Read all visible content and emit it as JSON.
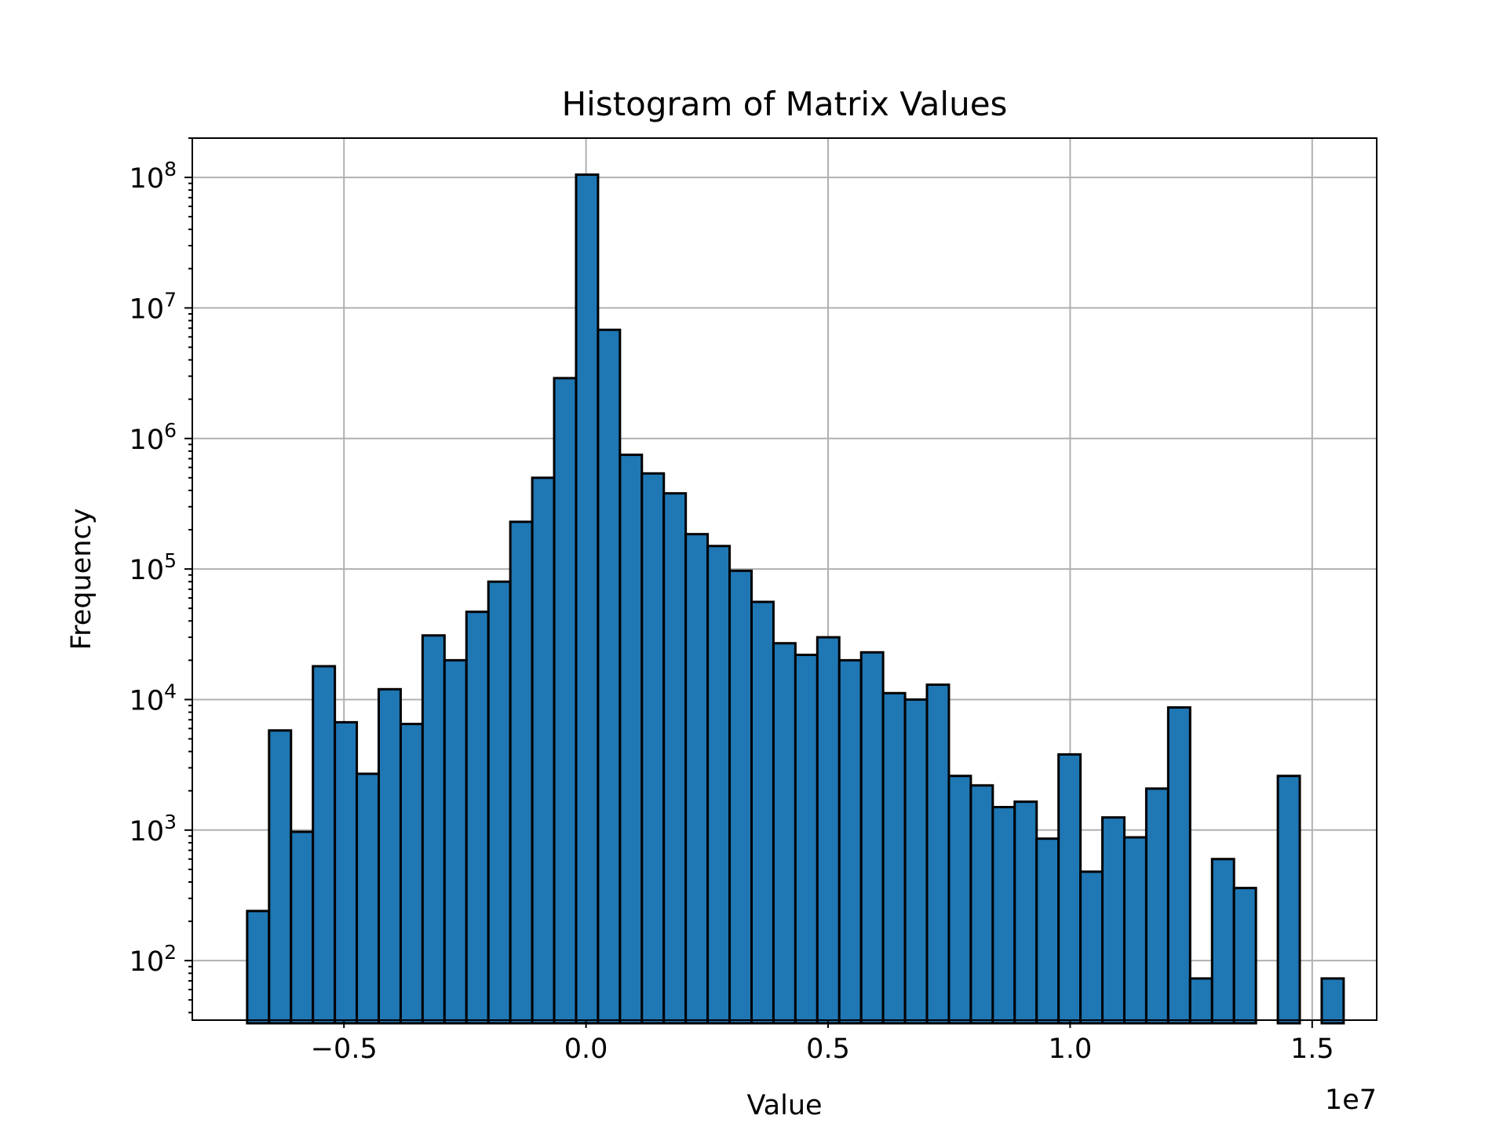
{
  "chart_data": {
    "type": "bar",
    "title": "Histogram of Matrix Values",
    "xlabel": "Value",
    "ylabel": "Frequency",
    "x_offset_label": "1e7",
    "xlim": [
      -0.8133,
      1.6333
    ],
    "ylim": [
      35,
      200000000
    ],
    "y_scale": "log",
    "grid": true,
    "bar_color": "#1f77b4",
    "edge_color": "#000000",
    "bin_start": -0.7,
    "bin_width": 0.0453,
    "values": [
      240,
      5800,
      970,
      18000,
      6700,
      2700,
      12000,
      6500,
      31000,
      20000,
      47000,
      80000,
      230000,
      500000,
      2900000,
      105000000,
      6800000,
      750000,
      540000,
      380000,
      185000,
      150000,
      97000,
      56000,
      27000,
      22000,
      30000,
      20000,
      23000,
      11200,
      10000,
      13000,
      2600,
      2200,
      1500,
      1650,
      860,
      3800,
      480,
      1250,
      880,
      2080,
      8700,
      73,
      600,
      360,
      0,
      2600,
      0,
      73
    ],
    "x_ticks": [
      {
        "value": -0.5,
        "label": "−0.5"
      },
      {
        "value": 0.0,
        "label": "0.0"
      },
      {
        "value": 0.5,
        "label": "0.5"
      },
      {
        "value": 1.0,
        "label": "1.0"
      },
      {
        "value": 1.5,
        "label": "1.5"
      }
    ],
    "y_ticks": [
      {
        "value": 100,
        "base": "10",
        "exp": "2"
      },
      {
        "value": 1000,
        "base": "10",
        "exp": "3"
      },
      {
        "value": 10000,
        "base": "10",
        "exp": "4"
      },
      {
        "value": 100000,
        "base": "10",
        "exp": "5"
      },
      {
        "value": 1000000,
        "base": "10",
        "exp": "6"
      },
      {
        "value": 10000000,
        "base": "10",
        "exp": "7"
      },
      {
        "value": 100000000,
        "base": "10",
        "exp": "8"
      }
    ]
  }
}
